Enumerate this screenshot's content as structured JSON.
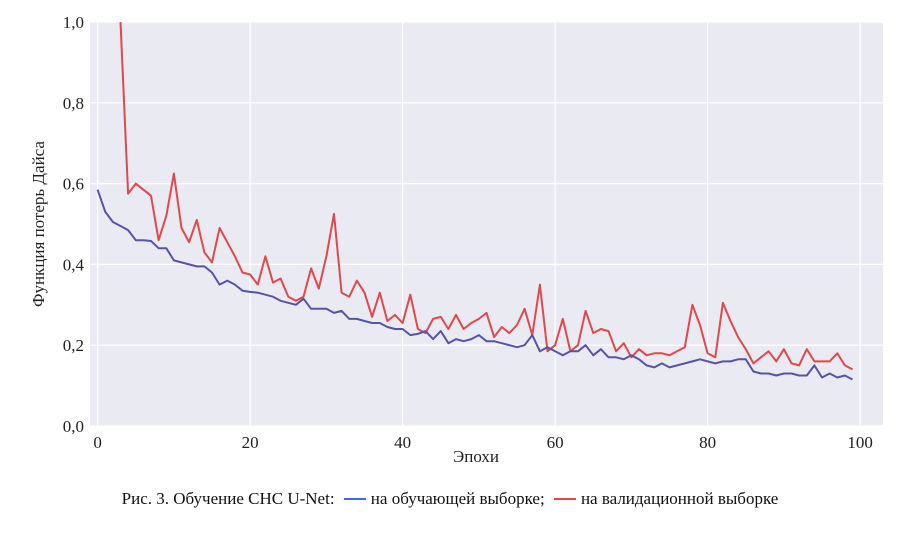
{
  "caption": {
    "prefix": "Рис. 3. Обучение СНС U-Net:",
    "train_text": "на обучающей выборке;",
    "val_text": "на валидационной выборке"
  },
  "colors": {
    "plot_bg": "#eaeaf2",
    "grid": "#ffffff",
    "train": "#5654a8",
    "val": "#e0484c",
    "caption_train": "#3b6fd4",
    "caption_val": "#e0484c"
  },
  "chart_data": {
    "type": "line",
    "xlabel": "Эпохи",
    "ylabel": "Функция потерь Дайса",
    "xlim": [
      -1,
      103
    ],
    "ylim": [
      0,
      1.0
    ],
    "xticks": [
      0,
      20,
      40,
      60,
      80,
      100
    ],
    "yticks": [
      0.0,
      0.2,
      0.4,
      0.6,
      0.8,
      1.0
    ],
    "xtick_labels": [
      "0",
      "20",
      "40",
      "60",
      "80",
      "100"
    ],
    "ytick_labels": [
      "0,0",
      "0,2",
      "0,4",
      "0,6",
      "0,8",
      "1,0"
    ],
    "grid": true,
    "series": [
      {
        "name": "на обучающей выборке",
        "color": "#5654a8",
        "x": [
          0,
          1,
          2,
          3,
          4,
          5,
          6,
          7,
          8,
          9,
          10,
          11,
          12,
          13,
          14,
          15,
          16,
          17,
          18,
          19,
          20,
          21,
          22,
          23,
          24,
          25,
          26,
          27,
          28,
          29,
          30,
          31,
          32,
          33,
          34,
          35,
          36,
          37,
          38,
          39,
          40,
          41,
          42,
          43,
          44,
          45,
          46,
          47,
          48,
          49,
          50,
          51,
          52,
          53,
          54,
          55,
          56,
          57,
          58,
          59,
          60,
          61,
          62,
          63,
          64,
          65,
          66,
          67,
          68,
          69,
          70,
          71,
          72,
          73,
          74,
          75,
          76,
          77,
          78,
          79,
          80,
          81,
          82,
          83,
          84,
          85,
          86,
          87,
          88,
          89,
          90,
          91,
          92,
          93,
          94,
          95,
          96,
          97,
          98,
          99
        ],
        "values": [
          0.585,
          0.53,
          0.505,
          0.495,
          0.485,
          0.46,
          0.46,
          0.458,
          0.44,
          0.44,
          0.41,
          0.405,
          0.4,
          0.395,
          0.395,
          0.38,
          0.35,
          0.36,
          0.35,
          0.335,
          0.332,
          0.33,
          0.325,
          0.32,
          0.31,
          0.305,
          0.3,
          0.315,
          0.29,
          0.29,
          0.29,
          0.28,
          0.285,
          0.265,
          0.265,
          0.26,
          0.255,
          0.255,
          0.245,
          0.24,
          0.24,
          0.225,
          0.228,
          0.235,
          0.215,
          0.235,
          0.205,
          0.215,
          0.21,
          0.215,
          0.225,
          0.21,
          0.21,
          0.205,
          0.2,
          0.195,
          0.2,
          0.225,
          0.185,
          0.195,
          0.185,
          0.175,
          0.185,
          0.185,
          0.2,
          0.175,
          0.19,
          0.17,
          0.17,
          0.165,
          0.175,
          0.165,
          0.15,
          0.145,
          0.155,
          0.145,
          0.15,
          0.155,
          0.16,
          0.165,
          0.16,
          0.155,
          0.16,
          0.16,
          0.165,
          0.165,
          0.135,
          0.13,
          0.13,
          0.125,
          0.13,
          0.13,
          0.125,
          0.125,
          0.15,
          0.12,
          0.13,
          0.12,
          0.125,
          0.115
        ]
      },
      {
        "name": "на валидационной выборке",
        "color": "#e0484c",
        "x": [
          3,
          4,
          5,
          6,
          7,
          8,
          9,
          10,
          11,
          12,
          13,
          14,
          15,
          16,
          17,
          18,
          19,
          20,
          21,
          22,
          23,
          24,
          25,
          26,
          27,
          28,
          29,
          30,
          31,
          32,
          33,
          34,
          35,
          36,
          37,
          38,
          39,
          40,
          41,
          42,
          43,
          44,
          45,
          46,
          47,
          48,
          49,
          50,
          51,
          52,
          53,
          54,
          55,
          56,
          57,
          58,
          59,
          60,
          61,
          62,
          63,
          64,
          65,
          66,
          67,
          68,
          69,
          70,
          71,
          72,
          73,
          74,
          75,
          76,
          77,
          78,
          79,
          80,
          81,
          82,
          83,
          84,
          85,
          86,
          87,
          88,
          89,
          90,
          91,
          92,
          93,
          94,
          95,
          96,
          97,
          98,
          99
        ],
        "values": [
          1.0,
          0.575,
          0.6,
          0.585,
          0.57,
          0.46,
          0.52,
          0.625,
          0.49,
          0.455,
          0.51,
          0.43,
          0.405,
          0.49,
          0.455,
          0.42,
          0.38,
          0.375,
          0.35,
          0.42,
          0.355,
          0.365,
          0.32,
          0.31,
          0.32,
          0.39,
          0.34,
          0.42,
          0.525,
          0.33,
          0.32,
          0.36,
          0.33,
          0.27,
          0.33,
          0.26,
          0.275,
          0.255,
          0.325,
          0.24,
          0.23,
          0.265,
          0.27,
          0.24,
          0.275,
          0.24,
          0.255,
          0.265,
          0.28,
          0.22,
          0.245,
          0.23,
          0.25,
          0.29,
          0.225,
          0.35,
          0.185,
          0.2,
          0.265,
          0.185,
          0.2,
          0.285,
          0.23,
          0.24,
          0.235,
          0.185,
          0.205,
          0.17,
          0.19,
          0.175,
          0.18,
          0.18,
          0.175,
          0.185,
          0.195,
          0.3,
          0.25,
          0.18,
          0.17,
          0.305,
          0.26,
          0.22,
          0.19,
          0.155,
          0.17,
          0.185,
          0.16,
          0.19,
          0.155,
          0.15,
          0.19,
          0.16,
          0.16,
          0.16,
          0.18,
          0.15,
          0.14
        ]
      }
    ]
  }
}
